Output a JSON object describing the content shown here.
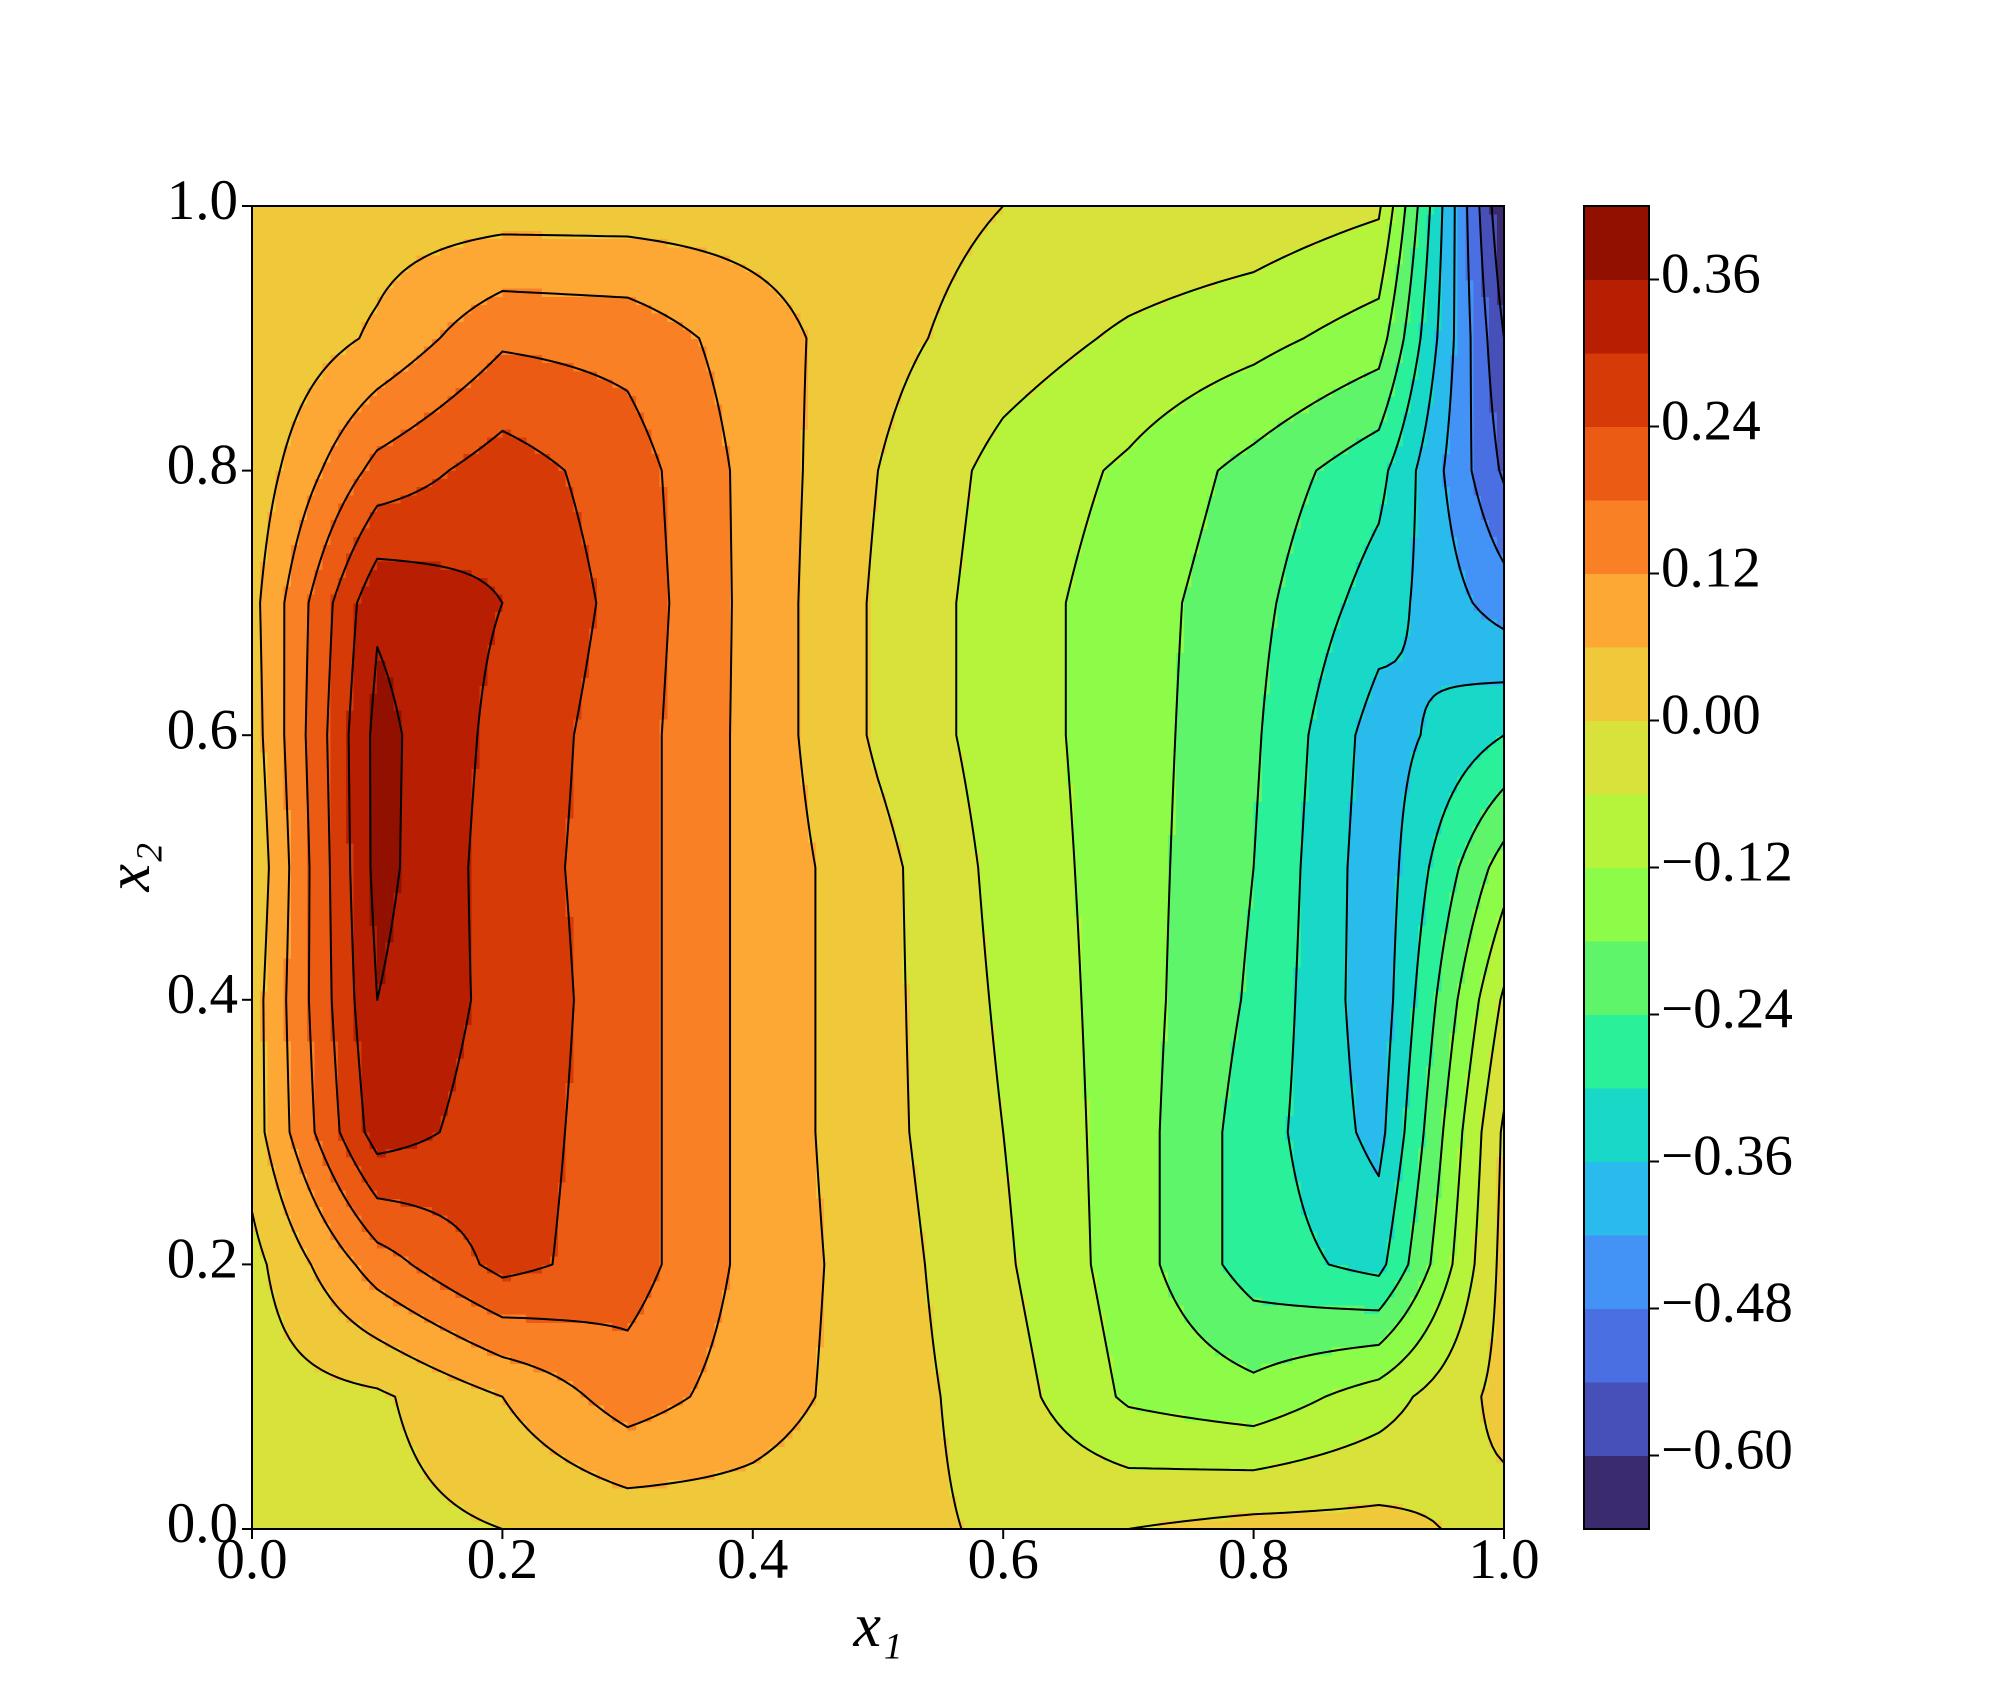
{
  "chart_data": {
    "type": "contourf",
    "xlabel": "x₁",
    "ylabel": "x₂",
    "xlim": [
      0,
      1
    ],
    "ylim": [
      0,
      1
    ],
    "xticks": [
      {
        "value": 0,
        "label": "0.0"
      },
      0.2,
      0.4,
      0.6,
      0.8,
      {
        "value": 1,
        "label": "1.0"
      }
    ],
    "yticks": [
      {
        "value": 0,
        "label": "0.0"
      },
      0.2,
      0.4,
      0.6,
      0.8,
      {
        "value": 1,
        "label": "1.0"
      }
    ],
    "x": [
      0,
      0.1,
      0.2,
      0.3,
      0.4,
      0.5,
      0.6,
      0.7,
      0.8,
      0.9,
      1
    ],
    "y": [
      0,
      0.1,
      0.2,
      0.3,
      0.4,
      0.5,
      0.6,
      0.7,
      0.8,
      0.9,
      1
    ],
    "z": [
      [
        -0.03,
        -0.02,
        0.0,
        0.02,
        0.03,
        0.02,
        -0.01,
        0.0,
        0.02,
        0.02,
        -0.02
      ],
      [
        -0.03,
        -0.01,
        0.06,
        0.15,
        0.09,
        0.03,
        -0.03,
        -0.13,
        -0.16,
        -0.09,
        0.02
      ],
      [
        -0.02,
        0.15,
        0.26,
        0.21,
        0.1,
        0.03,
        -0.05,
        -0.15,
        -0.27,
        -0.32,
        0.02
      ],
      [
        0.03,
        0.33,
        0.27,
        0.21,
        0.1,
        0.02,
        -0.06,
        -0.15,
        -0.27,
        -0.38,
        0.01
      ],
      [
        0.03,
        0.36,
        0.28,
        0.21,
        0.1,
        0.02,
        -0.07,
        -0.15,
        -0.25,
        -0.4,
        -0.05
      ],
      [
        0.01,
        0.38,
        0.27,
        0.21,
        0.1,
        0.02,
        -0.08,
        -0.15,
        -0.24,
        -0.4,
        -0.15
      ],
      [
        0.03,
        0.38,
        0.28,
        0.21,
        0.1,
        -0.01,
        -0.09,
        -0.15,
        -0.23,
        -0.39,
        -0.3
      ],
      [
        0.04,
        0.35,
        0.3,
        0.22,
        0.1,
        -0.01,
        -0.09,
        -0.15,
        -0.22,
        -0.33,
        -0.45
      ],
      [
        0.02,
        0.2,
        0.27,
        0.21,
        0.1,
        0.0,
        -0.08,
        -0.13,
        -0.2,
        -0.28,
        -0.55
      ],
      [
        0.0,
        0.07,
        0.17,
        0.16,
        0.09,
        0.02,
        -0.03,
        -0.07,
        -0.1,
        -0.15,
        -0.6
      ],
      [
        0.02,
        0.03,
        0.03,
        0.03,
        0.03,
        0.03,
        0.0,
        -0.01,
        -0.02,
        -0.05,
        -0.66
      ]
    ],
    "levels": [
      -0.66,
      -0.6,
      -0.54,
      -0.48,
      -0.42,
      -0.36,
      -0.3,
      -0.24,
      -0.18,
      -0.12,
      -0.06,
      0,
      0.06,
      0.12,
      0.18,
      0.24,
      0.3,
      0.36,
      0.42
    ],
    "colors": [
      "#3a2a6e",
      "#4650b8",
      "#4a6fe3",
      "#4392f5",
      "#28bbec",
      "#18d8c8",
      "#2af09a",
      "#5ef56b",
      "#8cfc48",
      "#b5f43a",
      "#d9e23b",
      "#f0c93a",
      "#fda834",
      "#f98025",
      "#ec5b14",
      "#d63a06",
      "#b71e02",
      "#921000"
    ],
    "line_color": "#000000",
    "colorbar_ticks": [
      {
        "value": -0.6,
        "label": "−0.60"
      },
      {
        "value": -0.48,
        "label": "−0.48"
      },
      {
        "value": -0.36,
        "label": "−0.36"
      },
      {
        "value": -0.24,
        "label": "−0.24"
      },
      {
        "value": -0.12,
        "label": "−0.12"
      },
      {
        "value": 0,
        "label": "0.00"
      },
      0.12,
      0.24,
      0.36
    ]
  }
}
